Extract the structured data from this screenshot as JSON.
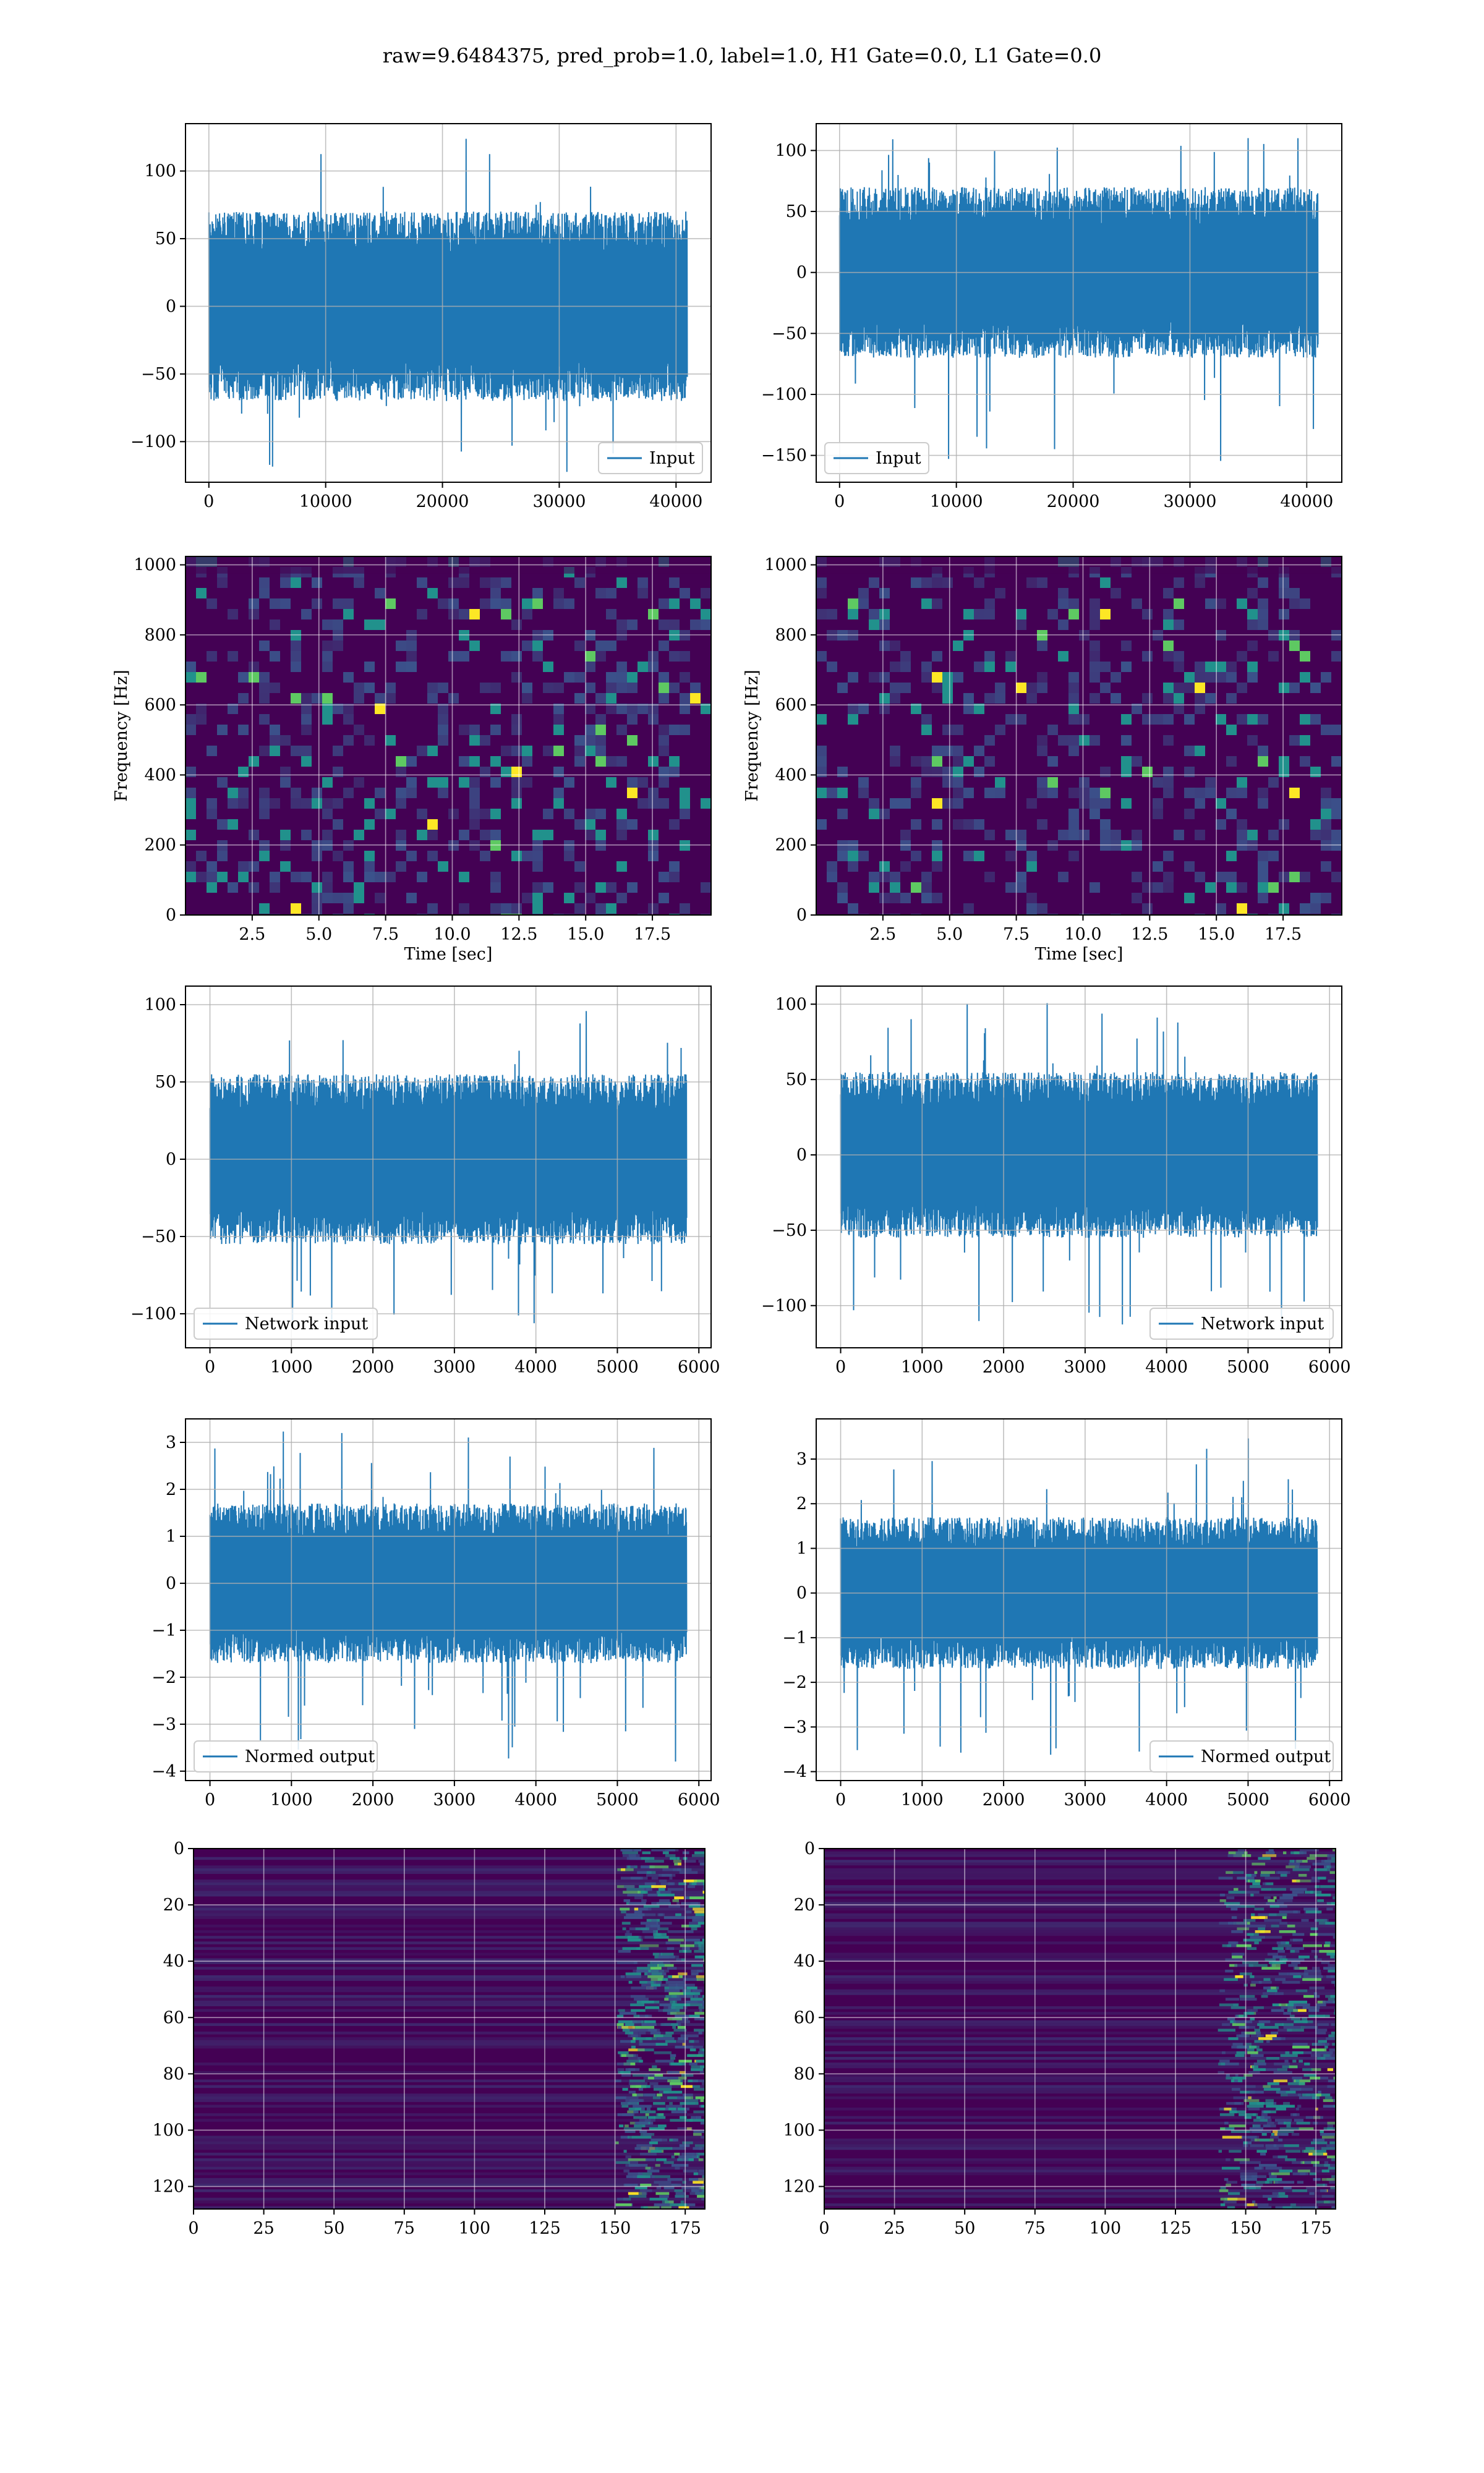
{
  "title": "raw=9.6484375, pred_prob=1.0, label=1.0, H1 Gate=0.0, L1 Gate=0.0",
  "colors": {
    "line": "#1f77b4",
    "grid": "#b0b0b0",
    "viridis_dark": "#440154",
    "viridis_mid": "#3b528b",
    "viridis_teal": "#21918c",
    "viridis_green": "#5ec962",
    "viridis_yellow": "#fde725"
  },
  "chart_data": [
    {
      "id": "input-h1",
      "type": "line",
      "title": "",
      "xlabel": "",
      "ylabel": "",
      "xlim": [
        -2000,
        43000
      ],
      "ylim": [
        -130,
        135
      ],
      "xticks": [
        {
          "v": 0,
          "label": "0"
        },
        {
          "v": 10000,
          "label": "10000"
        },
        {
          "v": 20000,
          "label": "20000"
        },
        {
          "v": 30000,
          "label": "30000"
        },
        {
          "v": 40000,
          "label": "40000"
        }
      ],
      "yticks": [
        {
          "v": -100,
          "label": "−100"
        },
        {
          "v": -50,
          "label": "−50"
        },
        {
          "v": 0,
          "label": "0"
        },
        {
          "v": 50,
          "label": "50"
        },
        {
          "v": 100,
          "label": "100"
        }
      ],
      "grid": true,
      "legend": {
        "label": "Input",
        "placement": "lower right"
      },
      "signal": {
        "n_samples": 40960,
        "x_end": 40960,
        "envelope": 70,
        "peak": 125,
        "trough": -125
      }
    },
    {
      "id": "input-l1",
      "type": "line",
      "title": "",
      "xlabel": "",
      "ylabel": "",
      "xlim": [
        -2000,
        43000
      ],
      "ylim": [
        -172,
        122
      ],
      "xticks": [
        {
          "v": 0,
          "label": "0"
        },
        {
          "v": 10000,
          "label": "10000"
        },
        {
          "v": 20000,
          "label": "20000"
        },
        {
          "v": 30000,
          "label": "30000"
        },
        {
          "v": 40000,
          "label": "40000"
        }
      ],
      "yticks": [
        {
          "v": -150,
          "label": "−150"
        },
        {
          "v": -100,
          "label": "−100"
        },
        {
          "v": -50,
          "label": "−50"
        },
        {
          "v": 0,
          "label": "0"
        },
        {
          "v": 50,
          "label": "50"
        },
        {
          "v": 100,
          "label": "100"
        }
      ],
      "grid": true,
      "legend": {
        "label": "Input",
        "placement": "lower left"
      },
      "signal": {
        "n_samples": 40960,
        "x_end": 40960,
        "envelope": 70,
        "peak": 115,
        "trough": -155
      }
    },
    {
      "id": "spectrogram-h1",
      "type": "heatmap",
      "title": "",
      "xlabel": "Time [sec]",
      "ylabel": "Frequency [Hz]",
      "xlim": [
        0,
        19.7
      ],
      "ylim": [
        0,
        1024
      ],
      "xticks": [
        {
          "v": 2.5,
          "label": "2.5"
        },
        {
          "v": 5,
          "label": "5.0"
        },
        {
          "v": 7.5,
          "label": "7.5"
        },
        {
          "v": 10,
          "label": "10.0"
        },
        {
          "v": 12.5,
          "label": "12.5"
        },
        {
          "v": 15,
          "label": "15.0"
        },
        {
          "v": 17.5,
          "label": "17.5"
        }
      ],
      "yticks": [
        {
          "v": 0,
          "label": "0"
        },
        {
          "v": 200,
          "label": "200"
        },
        {
          "v": 400,
          "label": "400"
        },
        {
          "v": 600,
          "label": "600"
        },
        {
          "v": 800,
          "label": "800"
        },
        {
          "v": 1000,
          "label": "1000"
        }
      ],
      "grid": true,
      "colormap": "viridis"
    },
    {
      "id": "spectrogram-l1",
      "type": "heatmap",
      "title": "",
      "xlabel": "Time [sec]",
      "ylabel": "Frequency [Hz]",
      "xlim": [
        0,
        19.7
      ],
      "ylim": [
        0,
        1024
      ],
      "xticks": [
        {
          "v": 2.5,
          "label": "2.5"
        },
        {
          "v": 5,
          "label": "5.0"
        },
        {
          "v": 7.5,
          "label": "7.5"
        },
        {
          "v": 10,
          "label": "10.0"
        },
        {
          "v": 12.5,
          "label": "12.5"
        },
        {
          "v": 15,
          "label": "15.0"
        },
        {
          "v": 17.5,
          "label": "17.5"
        }
      ],
      "yticks": [
        {
          "v": 0,
          "label": "0"
        },
        {
          "v": 200,
          "label": "200"
        },
        {
          "v": 400,
          "label": "400"
        },
        {
          "v": 600,
          "label": "600"
        },
        {
          "v": 800,
          "label": "800"
        },
        {
          "v": 1000,
          "label": "1000"
        }
      ],
      "grid": true,
      "colormap": "viridis"
    },
    {
      "id": "network-input-h1",
      "type": "line",
      "title": "",
      "xlabel": "",
      "ylabel": "",
      "xlim": [
        -300,
        6150
      ],
      "ylim": [
        -122,
        112
      ],
      "xticks": [
        {
          "v": 0,
          "label": "0"
        },
        {
          "v": 1000,
          "label": "1000"
        },
        {
          "v": 2000,
          "label": "2000"
        },
        {
          "v": 3000,
          "label": "3000"
        },
        {
          "v": 4000,
          "label": "4000"
        },
        {
          "v": 5000,
          "label": "5000"
        },
        {
          "v": 6000,
          "label": "6000"
        }
      ],
      "yticks": [
        {
          "v": -100,
          "label": "−100"
        },
        {
          "v": -50,
          "label": "−50"
        },
        {
          "v": 0,
          "label": "0"
        },
        {
          "v": 50,
          "label": "50"
        },
        {
          "v": 100,
          "label": "100"
        }
      ],
      "grid": true,
      "legend": {
        "label": "Network input",
        "placement": "lower left"
      },
      "signal": {
        "n_samples": 5850,
        "x_end": 5850,
        "envelope": 55,
        "peak": 105,
        "trough": -112
      }
    },
    {
      "id": "network-input-l1",
      "type": "line",
      "title": "",
      "xlabel": "",
      "ylabel": "",
      "xlim": [
        -300,
        6150
      ],
      "ylim": [
        -128,
        112
      ],
      "xticks": [
        {
          "v": 0,
          "label": "0"
        },
        {
          "v": 1000,
          "label": "1000"
        },
        {
          "v": 2000,
          "label": "2000"
        },
        {
          "v": 3000,
          "label": "3000"
        },
        {
          "v": 4000,
          "label": "4000"
        },
        {
          "v": 5000,
          "label": "5000"
        },
        {
          "v": 6000,
          "label": "6000"
        }
      ],
      "yticks": [
        {
          "v": -100,
          "label": "−100"
        },
        {
          "v": -50,
          "label": "−50"
        },
        {
          "v": 0,
          "label": "0"
        },
        {
          "v": 50,
          "label": "50"
        },
        {
          "v": 100,
          "label": "100"
        }
      ],
      "grid": true,
      "legend": {
        "label": "Network input",
        "placement": "lower right"
      },
      "signal": {
        "n_samples": 5850,
        "x_end": 5850,
        "envelope": 55,
        "peak": 102,
        "trough": -117
      }
    },
    {
      "id": "normed-output-h1",
      "type": "line",
      "title": "",
      "xlabel": "",
      "ylabel": "",
      "xlim": [
        -300,
        6150
      ],
      "ylim": [
        -4.2,
        3.5
      ],
      "xticks": [
        {
          "v": 0,
          "label": "0"
        },
        {
          "v": 1000,
          "label": "1000"
        },
        {
          "v": 2000,
          "label": "2000"
        },
        {
          "v": 3000,
          "label": "3000"
        },
        {
          "v": 4000,
          "label": "4000"
        },
        {
          "v": 5000,
          "label": "5000"
        },
        {
          "v": 6000,
          "label": "6000"
        }
      ],
      "yticks": [
        {
          "v": -4,
          "label": "−4"
        },
        {
          "v": -3,
          "label": "−3"
        },
        {
          "v": -2,
          "label": "−2"
        },
        {
          "v": -1,
          "label": "−1"
        },
        {
          "v": 0,
          "label": "0"
        },
        {
          "v": 1,
          "label": "1"
        },
        {
          "v": 2,
          "label": "2"
        },
        {
          "v": 3,
          "label": "3"
        }
      ],
      "grid": true,
      "legend": {
        "label": "Normed output",
        "placement": "lower left"
      },
      "signal": {
        "n_samples": 5850,
        "x_end": 5850,
        "envelope": 1.7,
        "peak": 3.3,
        "trough": -3.8
      }
    },
    {
      "id": "normed-output-l1",
      "type": "line",
      "title": "",
      "xlabel": "",
      "ylabel": "",
      "xlim": [
        -300,
        6150
      ],
      "ylim": [
        -4.2,
        3.9
      ],
      "xticks": [
        {
          "v": 0,
          "label": "0"
        },
        {
          "v": 1000,
          "label": "1000"
        },
        {
          "v": 2000,
          "label": "2000"
        },
        {
          "v": 3000,
          "label": "3000"
        },
        {
          "v": 4000,
          "label": "4000"
        },
        {
          "v": 5000,
          "label": "5000"
        },
        {
          "v": 6000,
          "label": "6000"
        }
      ],
      "yticks": [
        {
          "v": -4,
          "label": "−4"
        },
        {
          "v": -3,
          "label": "−3"
        },
        {
          "v": -2,
          "label": "−2"
        },
        {
          "v": -1,
          "label": "−1"
        },
        {
          "v": 0,
          "label": "0"
        },
        {
          "v": 1,
          "label": "1"
        },
        {
          "v": 2,
          "label": "2"
        },
        {
          "v": 3,
          "label": "3"
        }
      ],
      "grid": true,
      "legend": {
        "label": "Normed output",
        "placement": "lower right"
      },
      "signal": {
        "n_samples": 5850,
        "x_end": 5850,
        "envelope": 1.7,
        "peak": 3.6,
        "trough": -3.7
      }
    },
    {
      "id": "feature-map-h1",
      "type": "heatmap",
      "title": "",
      "xlabel": "",
      "ylabel": "",
      "xlim": [
        0,
        182
      ],
      "ylim": [
        128,
        0
      ],
      "xticks": [
        {
          "v": 0,
          "label": "0"
        },
        {
          "v": 25,
          "label": "25"
        },
        {
          "v": 50,
          "label": "50"
        },
        {
          "v": 75,
          "label": "75"
        },
        {
          "v": 100,
          "label": "100"
        },
        {
          "v": 125,
          "label": "125"
        },
        {
          "v": 150,
          "label": "150"
        },
        {
          "v": 175,
          "label": "175"
        }
      ],
      "yticks": [
        {
          "v": 0,
          "label": "0"
        },
        {
          "v": 20,
          "label": "20"
        },
        {
          "v": 40,
          "label": "40"
        },
        {
          "v": 60,
          "label": "60"
        },
        {
          "v": 80,
          "label": "80"
        },
        {
          "v": 100,
          "label": "100"
        },
        {
          "v": 120,
          "label": "120"
        }
      ],
      "grid": true,
      "colormap": "viridis",
      "active_region": {
        "x_start": 150,
        "x_end": 182
      }
    },
    {
      "id": "feature-map-l1",
      "type": "heatmap",
      "title": "",
      "xlabel": "",
      "ylabel": "",
      "xlim": [
        0,
        182
      ],
      "ylim": [
        128,
        0
      ],
      "xticks": [
        {
          "v": 0,
          "label": "0"
        },
        {
          "v": 25,
          "label": "25"
        },
        {
          "v": 50,
          "label": "50"
        },
        {
          "v": 75,
          "label": "75"
        },
        {
          "v": 100,
          "label": "100"
        },
        {
          "v": 125,
          "label": "125"
        },
        {
          "v": 150,
          "label": "150"
        },
        {
          "v": 175,
          "label": "175"
        }
      ],
      "yticks": [
        {
          "v": 0,
          "label": "0"
        },
        {
          "v": 20,
          "label": "20"
        },
        {
          "v": 40,
          "label": "40"
        },
        {
          "v": 60,
          "label": "60"
        },
        {
          "v": 80,
          "label": "80"
        },
        {
          "v": 100,
          "label": "100"
        },
        {
          "v": 120,
          "label": "120"
        }
      ],
      "grid": true,
      "colormap": "viridis",
      "active_region": {
        "x_start": 140,
        "x_end": 182
      }
    }
  ]
}
